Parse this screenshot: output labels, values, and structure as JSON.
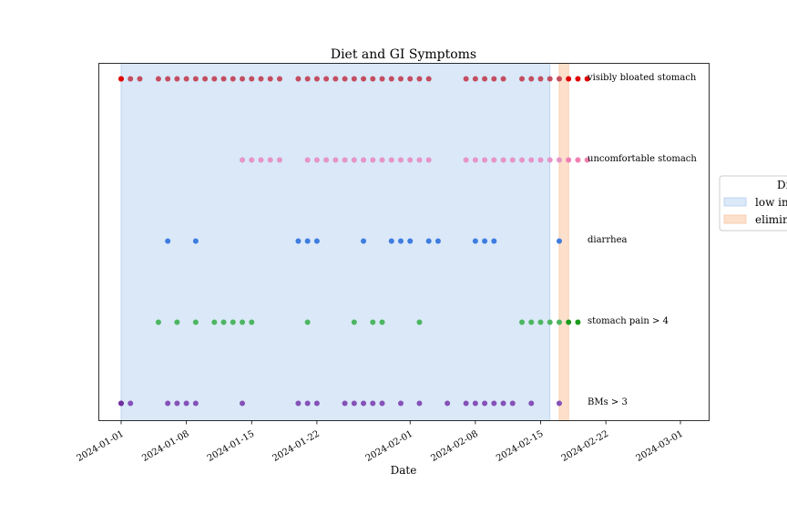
{
  "chart_data": {
    "type": "scatter",
    "title": "Diet and GI Symptoms",
    "xlabel": "Date",
    "ylabel": "",
    "xlim": [
      "2024-01-01",
      "2024-03-04"
    ],
    "xticks": [
      "2024-01-01",
      "2024-01-08",
      "2024-01-15",
      "2024-01-22",
      "2024-02-01",
      "2024-02-08",
      "2024-02-15",
      "2024-02-22",
      "2024-03-01"
    ],
    "grid": false,
    "legend": {
      "placement": "right",
      "title": "Di",
      "entries": [
        {
          "label": "low in",
          "color": "#dae8f8"
        },
        {
          "label": "elimin",
          "color": "#fde0cb"
        }
      ]
    },
    "diet_periods": [
      {
        "label": "low in",
        "start": "2024-01-01",
        "end": "2024-02-16",
        "color": "#dae8f8",
        "edge": "#b8d0ee"
      },
      {
        "label": "elimin",
        "start": "2024-02-17",
        "end": "2024-02-18",
        "color": "#fde0cb",
        "edge": "#f6c7a4"
      }
    ],
    "series": [
      {
        "name": "visibly bloated stomach",
        "color": "#c44e60",
        "extra_color": "#e00000",
        "dates": [
          "2024-01-01",
          "2024-01-02",
          "2024-01-03",
          "2024-01-05",
          "2024-01-06",
          "2024-01-07",
          "2024-01-08",
          "2024-01-09",
          "2024-01-10",
          "2024-01-11",
          "2024-01-12",
          "2024-01-13",
          "2024-01-14",
          "2024-01-15",
          "2024-01-16",
          "2024-01-17",
          "2024-01-18",
          "2024-01-20",
          "2024-01-21",
          "2024-01-22",
          "2024-01-23",
          "2024-01-24",
          "2024-01-25",
          "2024-01-26",
          "2024-01-27",
          "2024-01-28",
          "2024-01-29",
          "2024-01-30",
          "2024-01-31",
          "2024-02-01",
          "2024-02-02",
          "2024-02-03",
          "2024-02-07",
          "2024-02-08",
          "2024-02-09",
          "2024-02-10",
          "2024-02-11",
          "2024-02-13",
          "2024-02-14",
          "2024-02-15",
          "2024-02-16",
          "2024-02-17"
        ],
        "extra_dates": [
          "2024-01-01",
          "2024-02-18",
          "2024-02-19",
          "2024-02-20"
        ]
      },
      {
        "name": "uncomfortable stomach",
        "color": "#e595c8",
        "extra_color": "#f080b0",
        "dates": [
          "2024-01-14",
          "2024-01-15",
          "2024-01-16",
          "2024-01-17",
          "2024-01-18",
          "2024-01-21",
          "2024-01-22",
          "2024-01-23",
          "2024-01-24",
          "2024-01-25",
          "2024-01-26",
          "2024-01-27",
          "2024-01-28",
          "2024-01-29",
          "2024-01-30",
          "2024-01-31",
          "2024-02-01",
          "2024-02-02",
          "2024-02-03",
          "2024-02-07",
          "2024-02-08",
          "2024-02-09",
          "2024-02-10",
          "2024-02-11",
          "2024-02-12",
          "2024-02-13",
          "2024-02-14",
          "2024-02-15",
          "2024-02-16",
          "2024-02-17"
        ],
        "extra_dates": [
          "2024-02-18",
          "2024-02-19",
          "2024-02-20"
        ]
      },
      {
        "name": "diarrhea",
        "color": "#3e7ce0",
        "extra_color": "#3e7ce0",
        "dates": [
          "2024-01-06",
          "2024-01-09",
          "2024-01-20",
          "2024-01-21",
          "2024-01-22",
          "2024-01-27",
          "2024-01-30",
          "2024-01-31",
          "2024-02-01",
          "2024-02-03",
          "2024-02-04",
          "2024-02-08",
          "2024-02-09",
          "2024-02-10",
          "2024-02-17"
        ],
        "extra_dates": []
      },
      {
        "name": "stomach pain > 4",
        "color": "#4db662",
        "extra_color": "#1e9a1e",
        "dates": [
          "2024-01-05",
          "2024-01-07",
          "2024-01-09",
          "2024-01-11",
          "2024-01-12",
          "2024-01-13",
          "2024-01-14",
          "2024-01-15",
          "2024-01-21",
          "2024-01-26",
          "2024-01-28",
          "2024-01-29",
          "2024-02-02",
          "2024-02-13",
          "2024-02-14",
          "2024-02-15",
          "2024-02-16",
          "2024-02-17"
        ],
        "extra_dates": [
          "2024-02-18",
          "2024-02-19"
        ]
      },
      {
        "name": "BMs > 3",
        "color": "#8552b8",
        "extra_color": "#7030a0",
        "dates": [
          "2024-01-01",
          "2024-01-02",
          "2024-01-06",
          "2024-01-07",
          "2024-01-08",
          "2024-01-09",
          "2024-01-14",
          "2024-01-20",
          "2024-01-21",
          "2024-01-22",
          "2024-01-25",
          "2024-01-26",
          "2024-01-27",
          "2024-01-28",
          "2024-01-29",
          "2024-01-31",
          "2024-02-02",
          "2024-02-05",
          "2024-02-07",
          "2024-02-08",
          "2024-02-09",
          "2024-02-10",
          "2024-02-11",
          "2024-02-12",
          "2024-02-14",
          "2024-02-17"
        ],
        "extra_dates": [
          "2024-01-01"
        ]
      }
    ]
  }
}
